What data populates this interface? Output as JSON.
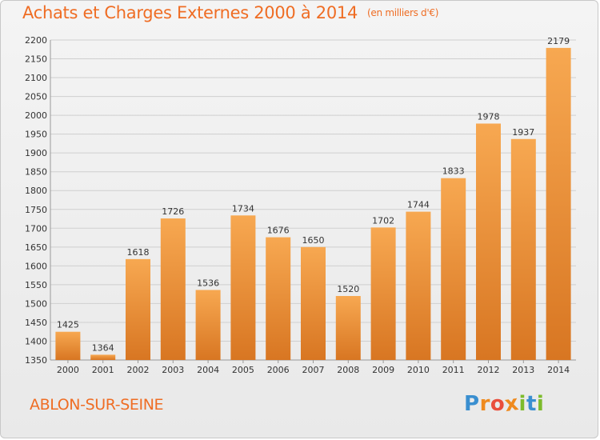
{
  "chart_data": {
    "type": "bar",
    "title": "Achats et Charges Externes 2000 à 2014",
    "subtitle": "(en milliers d'€)",
    "categories": [
      "2000",
      "2001",
      "2002",
      "2003",
      "2004",
      "2005",
      "2006",
      "2007",
      "2008",
      "2009",
      "2010",
      "2011",
      "2012",
      "2013",
      "2014"
    ],
    "values": [
      1425,
      1364,
      1618,
      1726,
      1536,
      1734,
      1676,
      1650,
      1520,
      1702,
      1744,
      1833,
      1978,
      1937,
      2179
    ],
    "ylim": [
      1350,
      2200
    ],
    "yticks": [
      1350,
      1400,
      1450,
      1500,
      1550,
      1600,
      1650,
      1700,
      1750,
      1800,
      1850,
      1900,
      1950,
      2000,
      2050,
      2100,
      2150,
      2200
    ],
    "grid": true,
    "bar_color_light": "#f7a851",
    "bar_color_dark": "#d87622",
    "accent_color": "#ef6d24"
  },
  "commune": "ABLON-SUR-SEINE",
  "logo": {
    "letters": [
      "P",
      "r",
      "o",
      "x",
      "i",
      "t",
      "i"
    ],
    "colors": [
      "#3a8fd0",
      "#ef8a1e",
      "#e94e3c",
      "#ef8a1e",
      "#7dbb2c",
      "#3a8fd0",
      "#7dbb2c"
    ]
  }
}
